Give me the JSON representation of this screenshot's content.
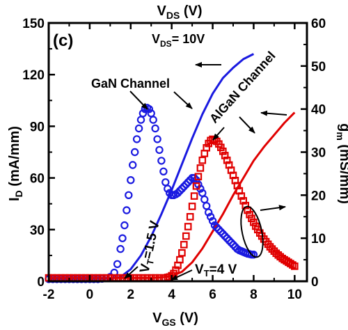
{
  "chart_data": {
    "type": "line",
    "panel_label": "(c)",
    "condition": {
      "main": "V",
      "sub": "DS",
      "rest": "= 10V"
    },
    "top_axis_title": {
      "main": "V",
      "sub": "DS",
      "rest": " (V)"
    },
    "x_axis": {
      "title": {
        "main": "V",
        "sub": "GS",
        "rest": " (V)"
      },
      "range": [
        -2,
        10.6
      ],
      "ticks": [
        -2,
        0,
        2,
        4,
        6,
        8,
        10
      ],
      "tick_labels": [
        "-2",
        "0",
        "2",
        "4",
        "6",
        "8",
        "10"
      ]
    },
    "y_left": {
      "title": {
        "main": "I",
        "sub": "D",
        "rest": " (mA/mm)"
      },
      "range": [
        0,
        150
      ],
      "ticks": [
        0,
        30,
        60,
        90,
        120,
        150
      ],
      "tick_labels": [
        "0",
        "30",
        "60",
        "90",
        "120",
        "150"
      ]
    },
    "y_right": {
      "title": {
        "main": "g",
        "sub": "m",
        "rest": " (mS/mm)"
      },
      "range": [
        0,
        60
      ],
      "ticks": [
        0,
        10,
        20,
        30,
        40,
        50,
        60
      ],
      "tick_labels": [
        "0",
        "10",
        "20",
        "30",
        "40",
        "50",
        "60"
      ]
    },
    "grid": false,
    "legend": "none",
    "series": [
      {
        "name": "GaN Channel",
        "quantity": "I_D",
        "axis": "left",
        "style": "line",
        "color": "#1a1ae0",
        "x": [
          -2,
          0,
          1.0,
          1.5,
          2.0,
          2.5,
          3.0,
          3.5,
          4.0,
          4.5,
          5.0,
          5.5,
          6.0,
          6.5,
          7.0,
          7.5,
          8.0
        ],
        "y": [
          1.5,
          1.5,
          1.6,
          2.5,
          7,
          15,
          26,
          39,
          53,
          68,
          83,
          97,
          109,
          118,
          124,
          129,
          132
        ]
      },
      {
        "name": "AlGaN Channel",
        "quantity": "I_D",
        "axis": "left",
        "style": "line",
        "color": "#e00000",
        "x": [
          -2,
          0,
          2.0,
          3.0,
          3.5,
          4.0,
          4.5,
          5.0,
          5.5,
          6.0,
          6.5,
          7.0,
          7.5,
          8.0,
          8.5,
          9.0,
          9.5,
          10.0
        ],
        "y": [
          2,
          2,
          2,
          2,
          2.3,
          3,
          5.5,
          11,
          19,
          29,
          39,
          50,
          60,
          70,
          78,
          85,
          92,
          98
        ]
      },
      {
        "name": "GaN Channel",
        "quantity": "g_m",
        "axis": "right",
        "style": "circle",
        "color": "#1a1ae0",
        "x": [
          -2.0,
          -1.8,
          -1.6,
          -1.4,
          -1.2,
          -1.0,
          -0.8,
          -0.6,
          -0.4,
          -0.2,
          0.0,
          0.2,
          0.4,
          0.6,
          0.8,
          1.0,
          1.2,
          1.35,
          1.5,
          1.6,
          1.7,
          1.8,
          1.9,
          2.0,
          2.1,
          2.2,
          2.3,
          2.4,
          2.5,
          2.6,
          2.7,
          2.8,
          2.9,
          3.0,
          3.1,
          3.2,
          3.3,
          3.4,
          3.5,
          3.6,
          3.7,
          3.8,
          3.9,
          4.0,
          4.1,
          4.2,
          4.3,
          4.4,
          4.5,
          4.6,
          4.7,
          4.8,
          4.9,
          5.0,
          5.1,
          5.2,
          5.3,
          5.4,
          5.5,
          5.6,
          5.7,
          5.8,
          5.9,
          6.0,
          6.1,
          6.2,
          6.3,
          6.4,
          6.5,
          6.6,
          6.7,
          6.8,
          6.9,
          7.0,
          7.1,
          7.2,
          7.3,
          7.4,
          7.5,
          7.6,
          7.7,
          7.8,
          7.9,
          8.0
        ],
        "y": [
          0.5,
          0.5,
          0.5,
          0.5,
          0.5,
          0.5,
          0.5,
          0.5,
          0.5,
          0.5,
          0.5,
          0.5,
          0.5,
          0.6,
          0.7,
          1.0,
          2.0,
          4.0,
          7.5,
          10.0,
          13.0,
          16.5,
          20.0,
          23.5,
          27.0,
          30.0,
          33.0,
          35.5,
          37.5,
          39.0,
          40.0,
          40.3,
          40.0,
          39.0,
          37.5,
          35.5,
          33.0,
          30.5,
          28.0,
          25.5,
          23.0,
          21.5,
          20.5,
          20.0,
          20.0,
          20.2,
          20.5,
          21.0,
          21.5,
          22.0,
          22.5,
          23.0,
          23.5,
          24.0,
          24.0,
          23.5,
          22.5,
          21.5,
          20.5,
          19.0,
          17.5,
          16.0,
          15.0,
          14.0,
          13.0,
          12.5,
          12.0,
          11.5,
          11.0,
          10.5,
          10.0,
          9.5,
          9.0,
          8.5,
          8.0,
          7.5,
          7.2,
          7.0,
          6.8,
          6.6,
          6.4,
          6.3,
          6.2,
          6.2
        ]
      },
      {
        "name": "AlGaN Channel",
        "quantity": "g_m",
        "axis": "right",
        "style": "square",
        "color": "#e00000",
        "x": [
          -2.0,
          -1.8,
          -1.6,
          -1.4,
          -1.2,
          -1.0,
          -0.8,
          -0.6,
          -0.4,
          -0.2,
          0.0,
          0.2,
          0.4,
          0.6,
          0.8,
          1.0,
          1.2,
          1.4,
          1.6,
          1.8,
          2.0,
          2.2,
          2.4,
          2.6,
          2.8,
          3.0,
          3.2,
          3.4,
          3.6,
          3.8,
          3.9,
          4.0,
          4.1,
          4.2,
          4.3,
          4.4,
          4.5,
          4.6,
          4.7,
          4.8,
          4.9,
          5.0,
          5.1,
          5.2,
          5.3,
          5.4,
          5.5,
          5.6,
          5.7,
          5.8,
          5.9,
          6.0,
          6.1,
          6.2,
          6.3,
          6.4,
          6.5,
          6.6,
          6.7,
          6.8,
          6.9,
          7.0,
          7.1,
          7.2,
          7.3,
          7.4,
          7.5,
          7.6,
          7.7,
          7.8,
          7.9,
          8.0,
          8.1,
          8.2,
          8.3,
          8.4,
          8.5,
          8.6,
          8.7,
          8.8,
          8.9,
          9.0,
          9.1,
          9.2,
          9.3,
          9.4,
          9.5,
          9.6,
          9.7,
          9.8,
          9.9,
          10.0
        ],
        "y": [
          0.8,
          0.8,
          0.8,
          0.8,
          0.8,
          0.8,
          0.8,
          0.8,
          0.8,
          0.8,
          0.8,
          0.8,
          0.8,
          0.8,
          0.8,
          0.8,
          0.8,
          0.8,
          0.8,
          0.8,
          0.8,
          0.8,
          0.8,
          0.8,
          0.8,
          0.8,
          0.8,
          0.8,
          0.8,
          0.9,
          1.0,
          1.3,
          1.8,
          2.6,
          3.7,
          5.0,
          6.6,
          8.5,
          10.5,
          12.7,
          15.0,
          17.4,
          19.8,
          22.1,
          24.3,
          26.3,
          28.1,
          29.7,
          31.0,
          32.0,
          32.7,
          33.0,
          32.9,
          32.5,
          31.9,
          31.1,
          30.2,
          29.2,
          28.1,
          27.0,
          25.8,
          24.6,
          23.4,
          22.2,
          21.0,
          19.8,
          18.7,
          17.6,
          16.5,
          15.5,
          14.6,
          13.7,
          12.8,
          12.0,
          11.2,
          10.5,
          9.8,
          9.2,
          8.6,
          8.0,
          7.5,
          7.0,
          6.5,
          6.1,
          5.7,
          5.3,
          5.0,
          4.7,
          4.4,
          4.1,
          3.8,
          3.5
        ]
      }
    ],
    "annotations": [
      {
        "text": "GaN Channel",
        "color": "#000000"
      },
      {
        "text": "AlGaN Channel",
        "color": "#000000"
      },
      {
        "main": "V",
        "sub": "T",
        "rest": "=1.5 V",
        "color": "#000000"
      },
      {
        "main": "V",
        "sub": "T",
        "rest": "=4 V",
        "color": "#000000"
      }
    ]
  }
}
